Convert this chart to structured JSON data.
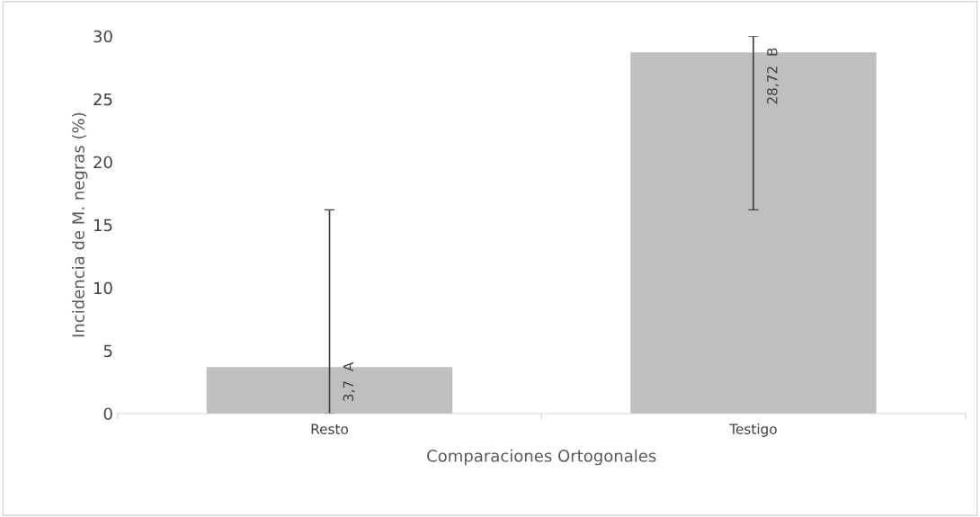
{
  "chart_data": {
    "type": "bar",
    "xlabel": "Comparaciones Ortogonales",
    "ylabel": "Incidencia de M. negras (%)",
    "categories": [
      "Resto",
      "Testigo"
    ],
    "values": [
      3.7,
      28.72
    ],
    "color": "#bfbfbf",
    "errors": [
      [
        0,
        16.2
      ],
      [
        16.2,
        30
      ]
    ],
    "value_labels": [
      "3,7  A",
      "28,72  B"
    ],
    "ylim": [
      0,
      30
    ],
    "yticks": [
      0,
      5,
      10,
      15,
      20,
      25,
      30
    ],
    "grid": false,
    "legend": false
  }
}
